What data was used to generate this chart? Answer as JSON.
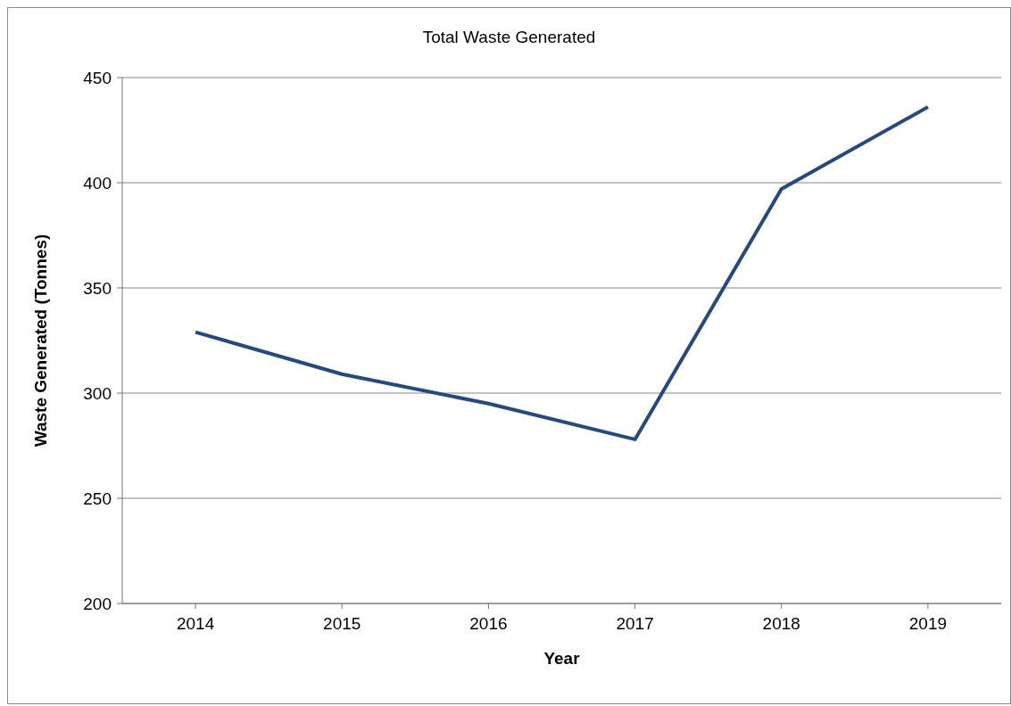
{
  "chart_data": {
    "type": "line",
    "title": "Total Waste Generated",
    "xlabel": "Year",
    "ylabel": "Waste Generated (Tonnes)",
    "categories": [
      "2014",
      "2015",
      "2016",
      "2017",
      "2018",
      "2019"
    ],
    "series": [
      {
        "color": "#254a7d",
        "values": [
          329,
          309,
          295,
          278,
          397,
          436
        ]
      }
    ],
    "ylim": [
      200,
      450
    ],
    "yticks": [
      200,
      250,
      300,
      350,
      400,
      450
    ],
    "grid": "y",
    "legend": false,
    "marker": "none",
    "line_style": "solid"
  }
}
